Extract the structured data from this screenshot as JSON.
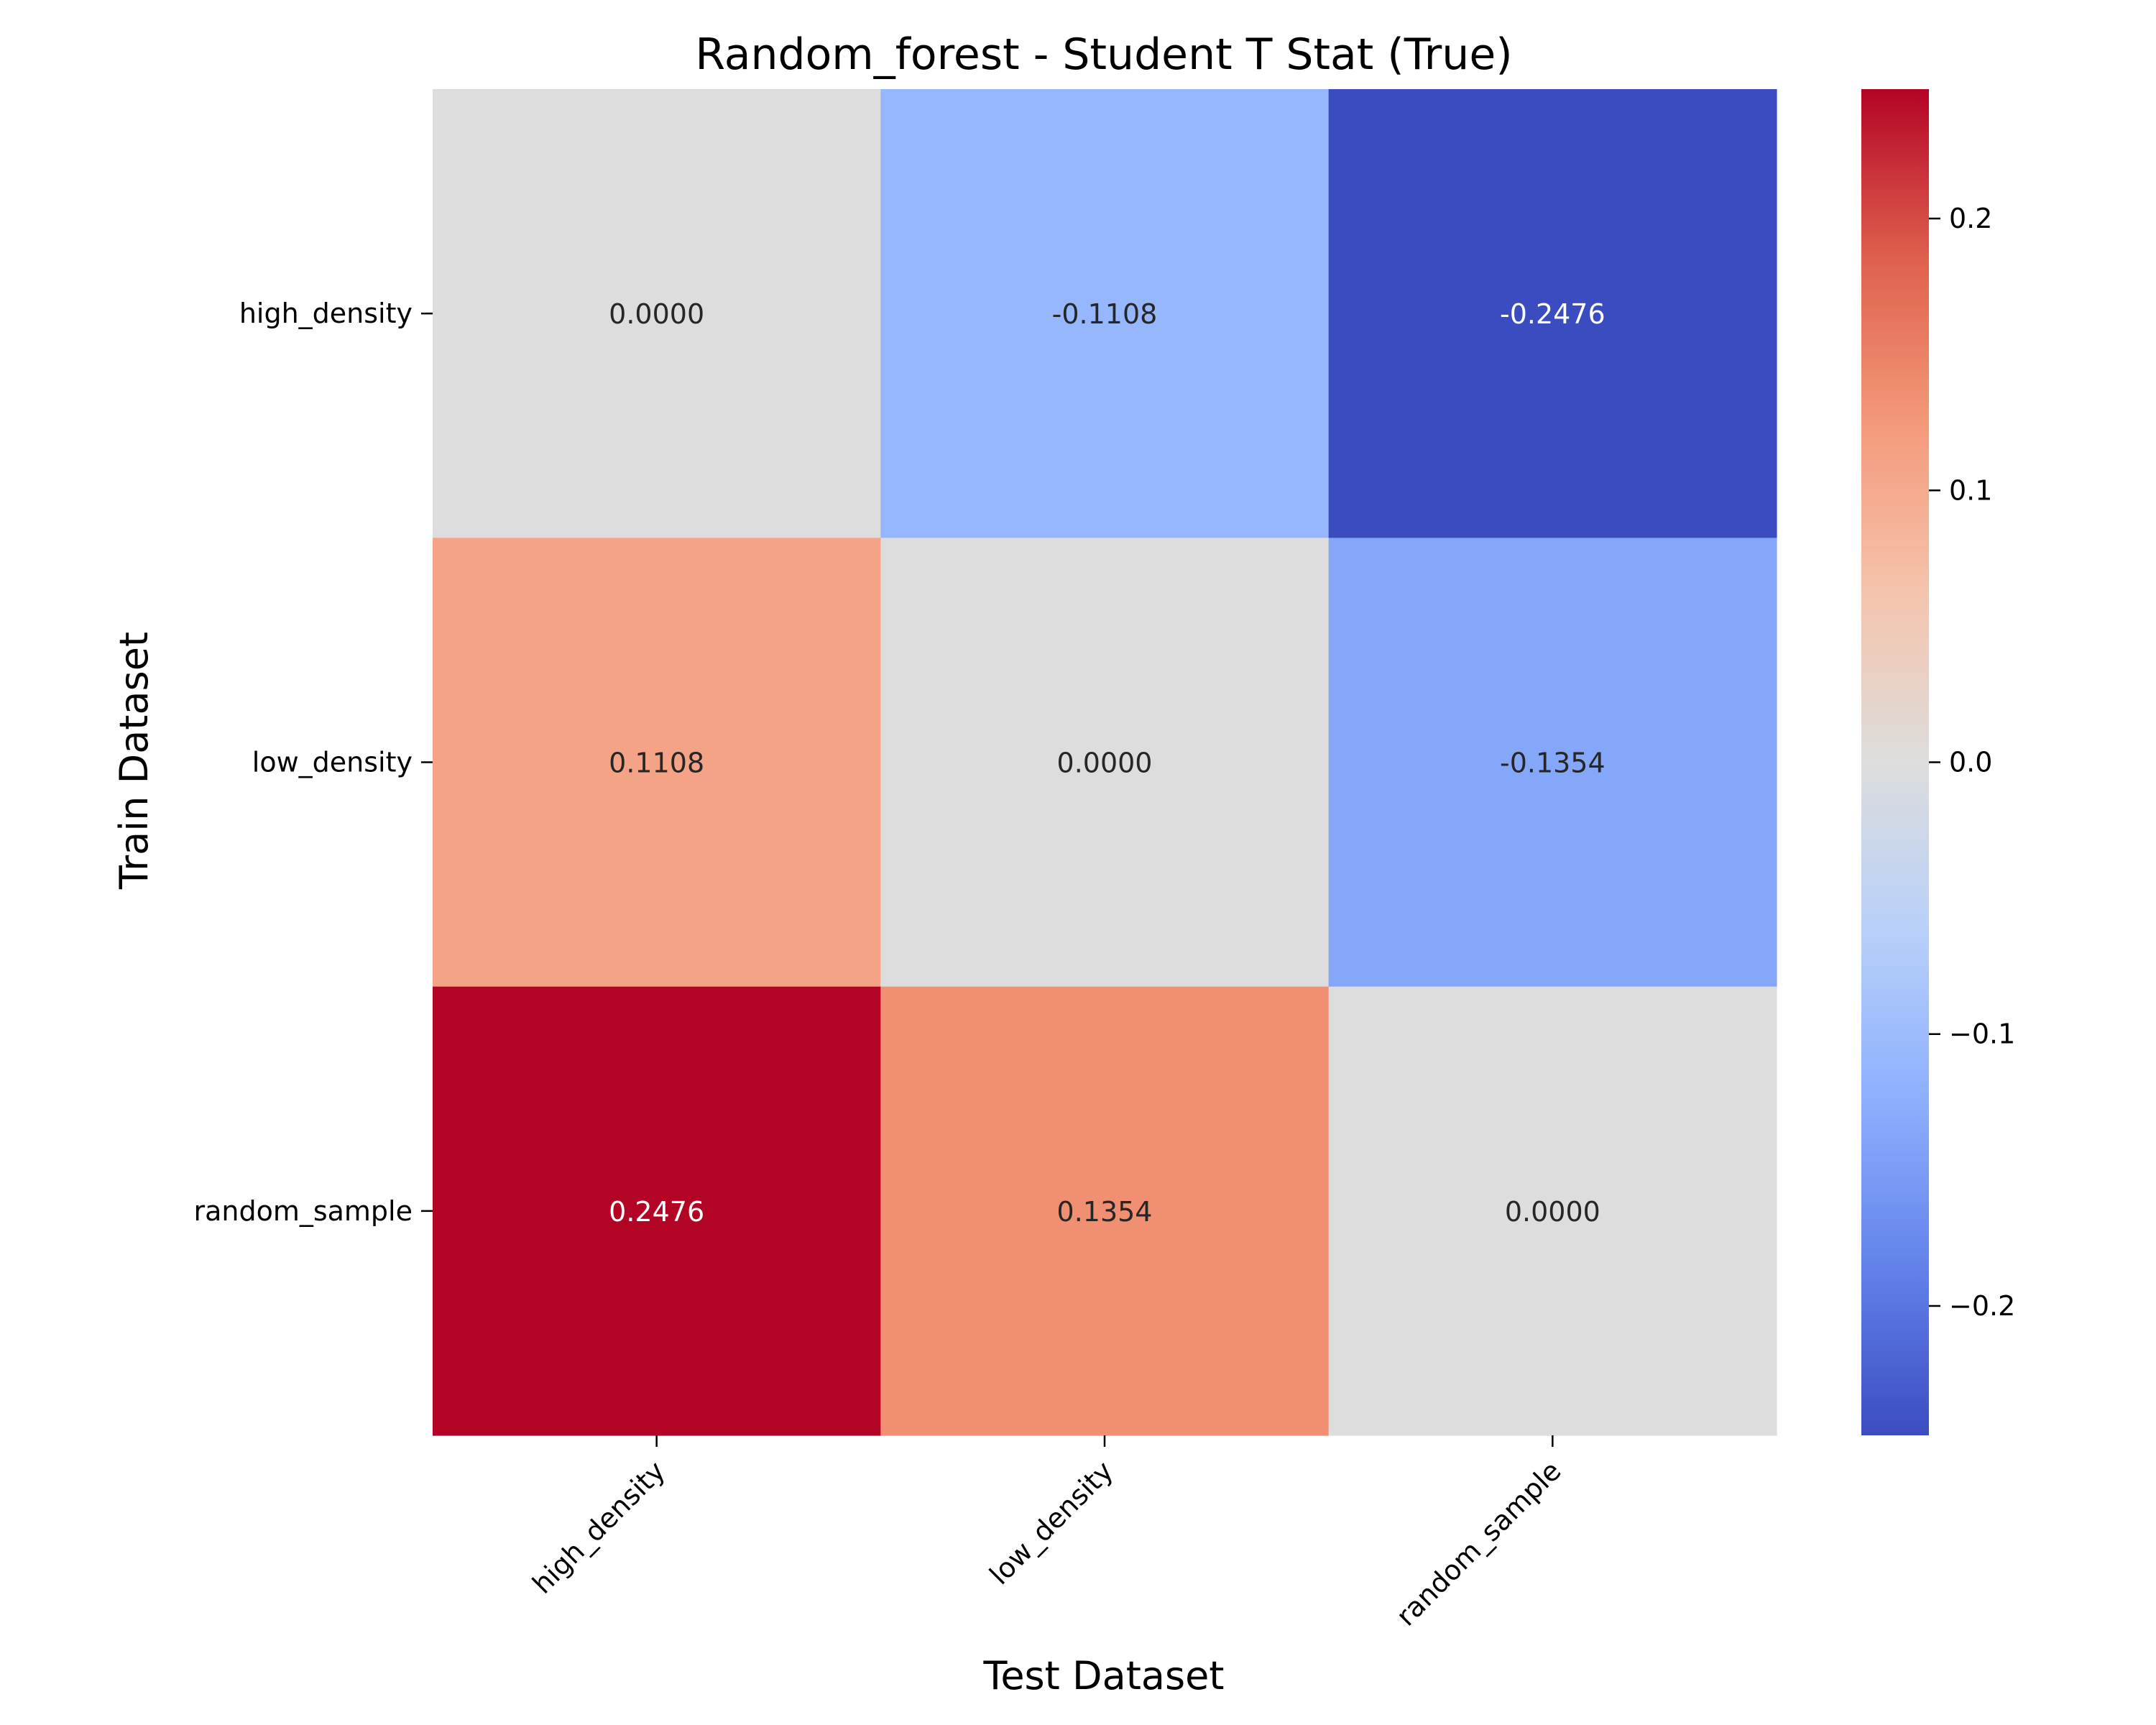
{
  "chart_data": {
    "type": "heatmap",
    "title": "Random_forest - Student T Stat (True)",
    "xlabel": "Test Dataset",
    "ylabel": "Train Dataset",
    "x_categories": [
      "high_density",
      "low_density",
      "random_sample"
    ],
    "y_categories": [
      "high_density",
      "low_density",
      "random_sample"
    ],
    "values": [
      [
        0.0,
        -0.1108,
        -0.2476
      ],
      [
        0.1108,
        0.0,
        -0.1354
      ],
      [
        0.2476,
        0.1354,
        0.0
      ]
    ],
    "cell_labels": [
      [
        "0.0000",
        "-0.1108",
        "-0.2476"
      ],
      [
        "0.1108",
        "0.0000",
        "-0.1354"
      ],
      [
        "0.2476",
        "0.1354",
        "0.0000"
      ]
    ],
    "colormap": "coolwarm",
    "vmin": -0.2476,
    "vmax": 0.2476,
    "colorbar_ticks": [
      0.2,
      0.1,
      0.0,
      -0.1,
      -0.2
    ],
    "colorbar_tick_labels": [
      "0.2",
      "0.1",
      "0.0",
      "−0.1",
      "−0.2"
    ],
    "grid": false,
    "colors": {
      "low": "#3b4cc0",
      "mid": "#dddddd",
      "high": "#b40426"
    }
  }
}
